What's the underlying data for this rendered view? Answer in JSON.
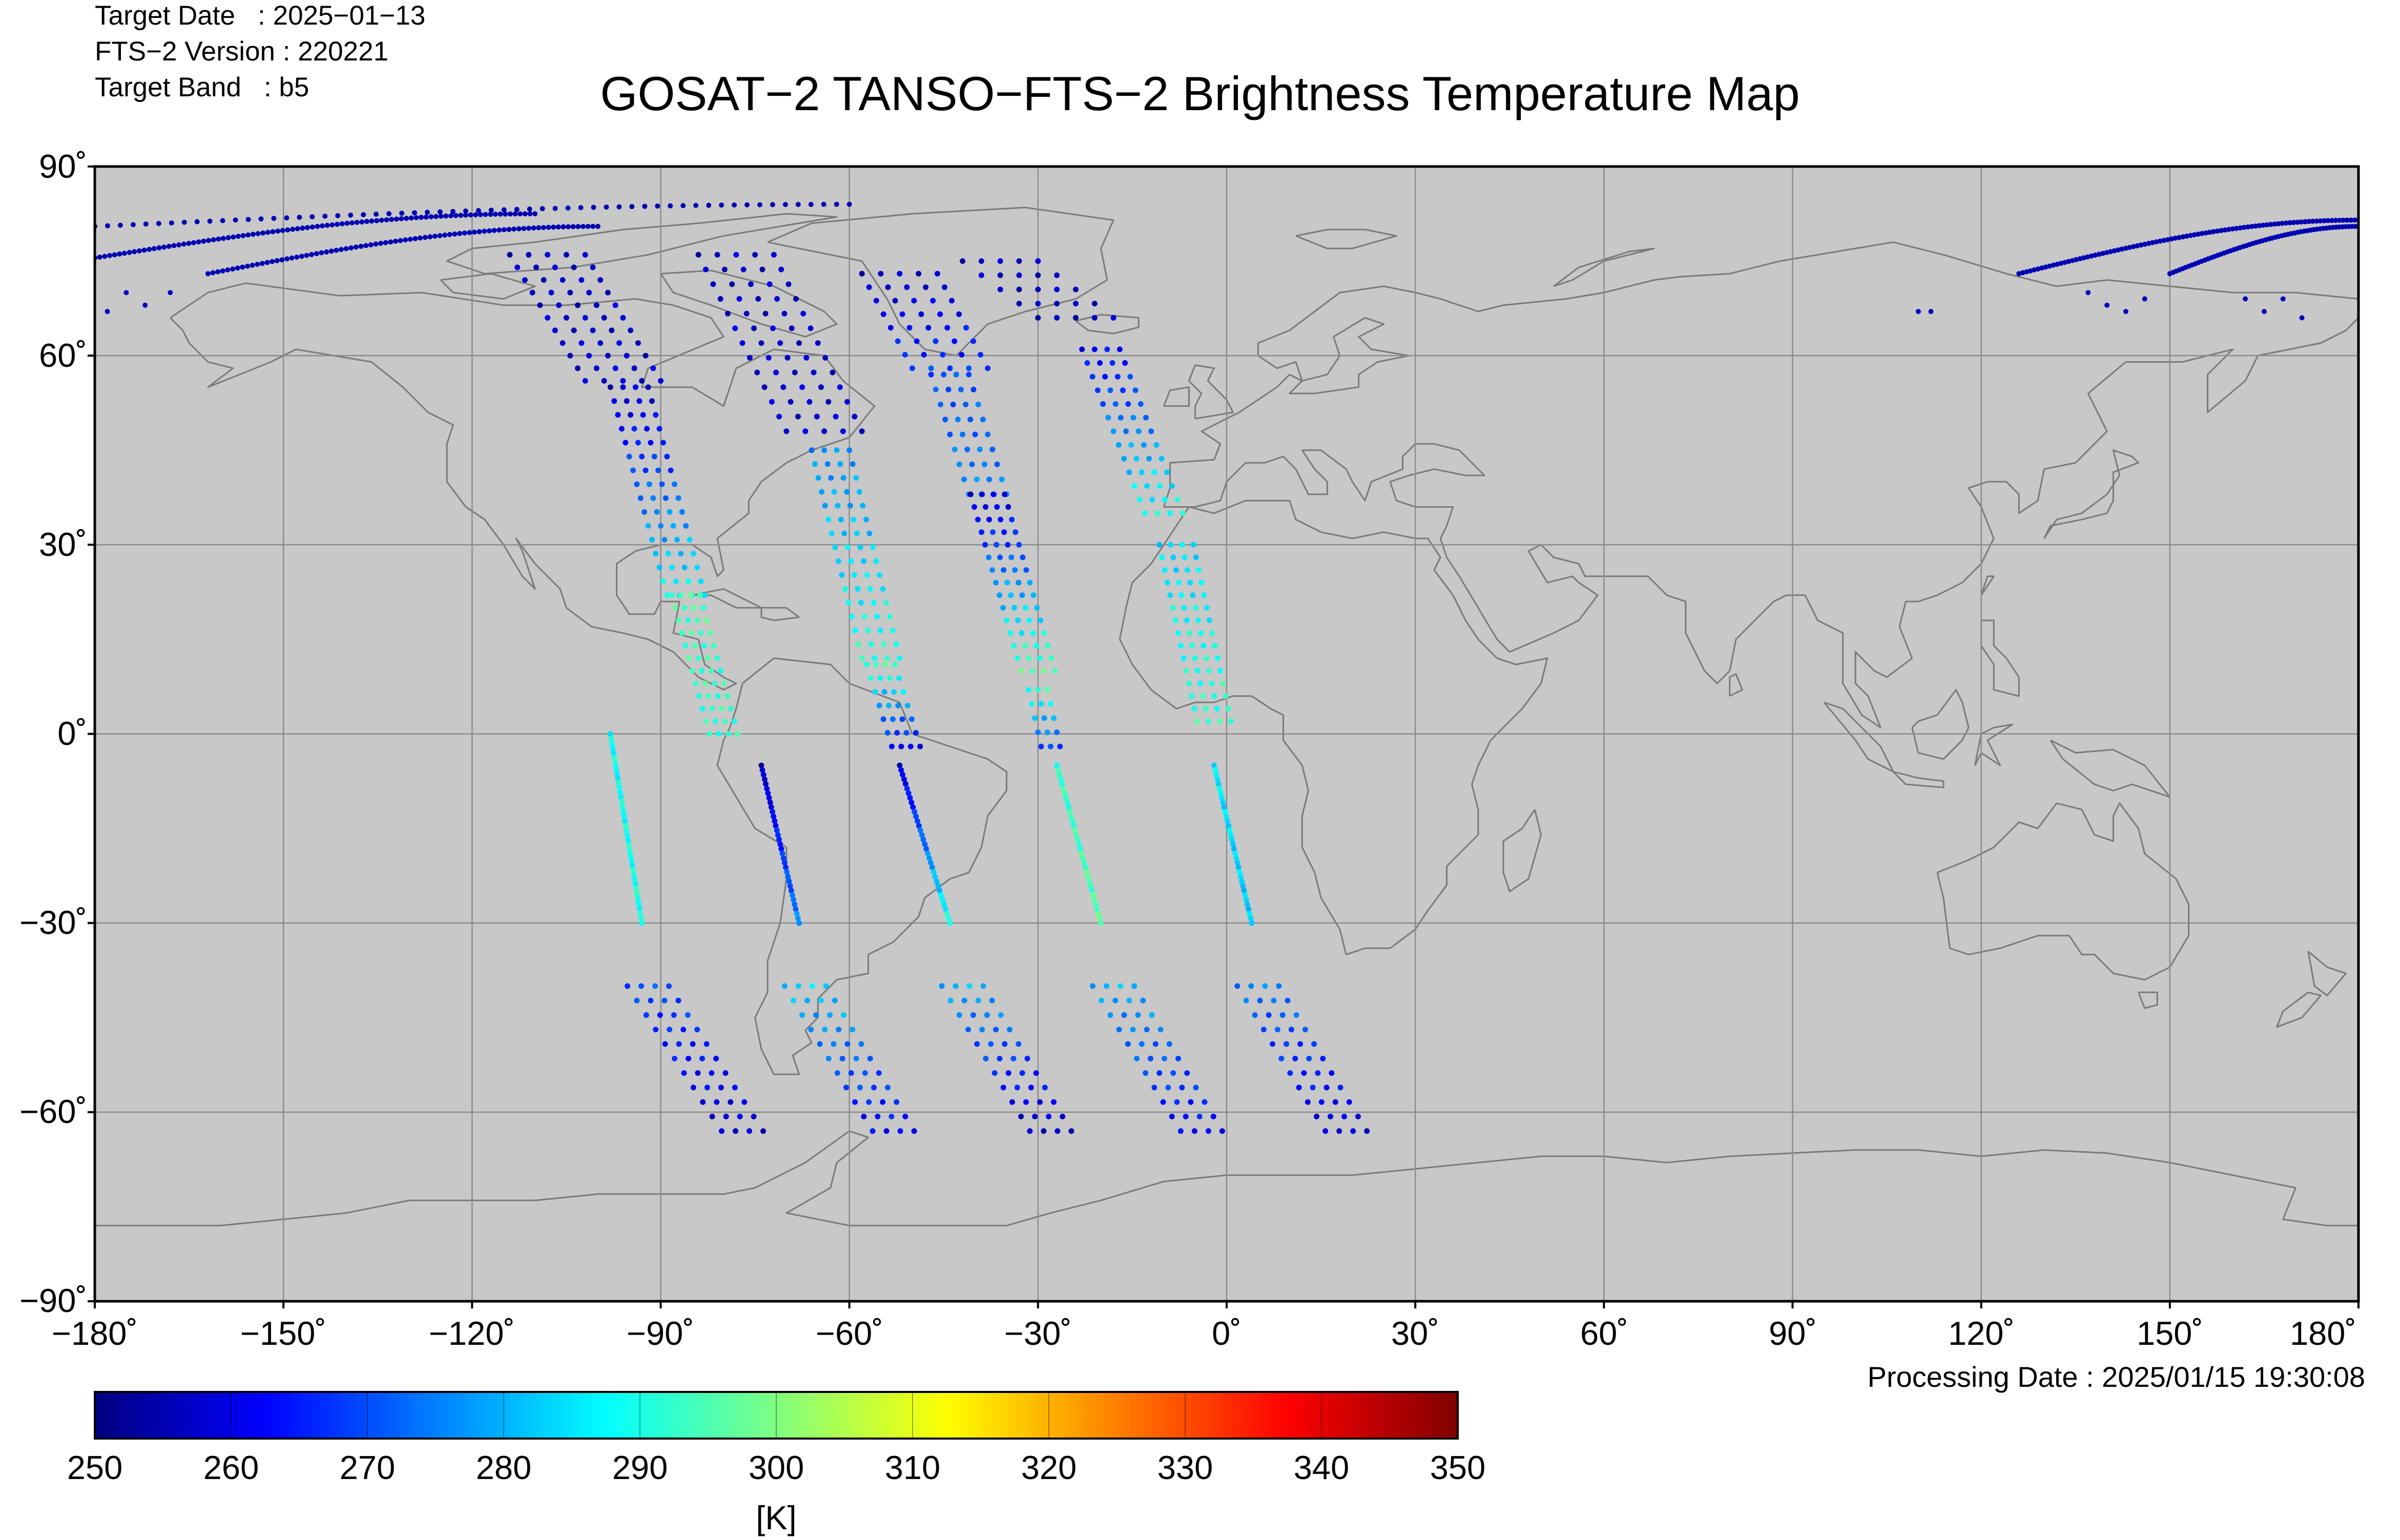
{
  "header": {
    "target_date": "Target Date   : 2025−01−13",
    "fts_version": "FTS−2 Version : 220221",
    "target_band": "Target Band   : b5",
    "title": "GOSAT−2 TANSO−FTS−2 Brightness Temperature Map"
  },
  "footer": {
    "processing_date": "Processing Date : 2025/01/15 19:30:08"
  },
  "axes": {
    "lon_range": [
      -180,
      180
    ],
    "lat_range": [
      -90,
      90
    ],
    "lon_ticks": [
      "−180˚",
      "−150˚",
      "−120˚",
      "−90˚",
      "−60˚",
      "−30˚",
      "0˚",
      "30˚",
      "60˚",
      "90˚",
      "120˚",
      "150˚",
      "180˚"
    ],
    "lat_ticks": [
      "90˚",
      "60˚",
      "30˚",
      "0˚",
      "−30˚",
      "−60˚",
      "−90˚"
    ],
    "grid": true
  },
  "colorbar": {
    "min": 250,
    "max": 350,
    "tick_labels": [
      "250",
      "260",
      "270",
      "280",
      "290",
      "300",
      "310",
      "320",
      "330",
      "340",
      "350"
    ],
    "unit": "[K]",
    "colormap": "jet"
  },
  "colors": {
    "map_background": "#c8c8c8",
    "coastline": "#7a7a7a",
    "grid": "#8c8c8c",
    "frame": "#000000"
  },
  "observations": {
    "swaths": [
      {
        "segments": [
          {
            "lat0": 76,
            "lat1": 56,
            "lon0": -108,
            "lon1": -96,
            "bt0": 256,
            "bt1": 258,
            "rows": 11,
            "cols": 5,
            "spacing": 3
          },
          {
            "lat0": 55,
            "lat1": 22,
            "lon0": -95,
            "lon1": -86,
            "bt0": 257,
            "bt1": 288,
            "rows": 16,
            "cols": 4,
            "spacing": 2
          },
          {
            "lat0": 22,
            "lat1": 0,
            "lon0": -86,
            "lon1": -80,
            "bt0": 295,
            "bt1": 292,
            "rows": 12,
            "cols": 4,
            "spacing": 1.5
          },
          {
            "lat0": -5,
            "lat1": -30,
            "lon0": -74,
            "lon1": -68,
            "bt0": 256,
            "bt1": 276,
            "rows": 35,
            "cols": 1,
            "spacing": 0
          },
          {
            "lat0": -40,
            "lat1": -63,
            "lon0": -92,
            "lon1": -77,
            "bt0": 270,
            "bt1": 257,
            "rows": 11,
            "cols": 4,
            "spacing": 2.2
          }
        ]
      },
      {
        "segments": [
          {
            "lat0": 76,
            "lat1": 48,
            "lon0": -78,
            "lon1": -64,
            "bt0": 256,
            "bt1": 258,
            "rows": 13,
            "cols": 5,
            "spacing": 3
          },
          {
            "lat0": 45,
            "lat1": 12,
            "lon0": -63,
            "lon1": -55,
            "bt0": 276,
            "bt1": 292,
            "rows": 16,
            "cols": 4,
            "spacing": 2
          },
          {
            "lat0": 11,
            "lat1": -2,
            "lon0": -55,
            "lon1": -51,
            "bt0": 294,
            "bt1": 262,
            "rows": 7,
            "cols": 4,
            "spacing": 1.5
          },
          {
            "lat0": -5,
            "lat1": -30,
            "lon0": -52,
            "lon1": -44,
            "bt0": 258,
            "bt1": 290,
            "rows": 35,
            "cols": 1,
            "spacing": 0
          },
          {
            "lat0": -40,
            "lat1": -63,
            "lon0": -67,
            "lon1": -53,
            "bt0": 283,
            "bt1": 262,
            "rows": 11,
            "cols": 4,
            "spacing": 2.2
          }
        ]
      },
      {
        "segments": [
          {
            "lat0": 73,
            "lat1": 58,
            "lon0": -52,
            "lon1": -44,
            "bt0": 256,
            "bt1": 268,
            "rows": 8,
            "cols": 5,
            "spacing": 3
          },
          {
            "lat0": 57,
            "lat1": 38,
            "lon0": -44,
            "lon1": -38,
            "bt0": 270,
            "bt1": 276,
            "rows": 9,
            "cols": 4,
            "spacing": 2
          },
          {
            "lat0": 38,
            "lat1": 10,
            "lon0": -38,
            "lon1": -30,
            "bt0": 258,
            "bt1": 296,
            "rows": 15,
            "cols": 4,
            "spacing": 1.8
          },
          {
            "lat0": 7,
            "lat1": -2,
            "lon0": -30,
            "lon1": -28,
            "bt0": 292,
            "bt1": 270,
            "rows": 5,
            "cols": 3,
            "spacing": 1.5
          },
          {
            "lat0": -5,
            "lat1": -30,
            "lon0": -27,
            "lon1": -20,
            "bt0": 292,
            "bt1": 296,
            "rows": 35,
            "cols": 1,
            "spacing": 0
          },
          {
            "lat0": -40,
            "lat1": -63,
            "lon0": -42,
            "lon1": -28,
            "bt0": 280,
            "bt1": 256,
            "rows": 11,
            "cols": 4,
            "spacing": 2.2
          }
        ]
      },
      {
        "segments": [
          {
            "lat0": 75,
            "lat1": 66,
            "lon0": -36,
            "lon1": -24,
            "bt0": 256,
            "bt1": 256,
            "rows": 5,
            "cols": 5,
            "spacing": 3
          },
          {
            "lat0": 61,
            "lat1": 35,
            "lon0": -20,
            "lon1": -10,
            "bt0": 262,
            "bt1": 290,
            "rows": 13,
            "cols": 4,
            "spacing": 2
          },
          {
            "lat0": 30,
            "lat1": 2,
            "lon0": -8,
            "lon1": -2,
            "bt0": 284,
            "bt1": 293,
            "rows": 15,
            "cols": 4,
            "spacing": 1.8
          },
          {
            "lat0": -5,
            "lat1": -30,
            "lon0": -2,
            "lon1": 4,
            "bt0": 286,
            "bt1": 282,
            "rows": 35,
            "cols": 1,
            "spacing": 0
          },
          {
            "lat0": -40,
            "lat1": -63,
            "lon0": -18,
            "lon1": -4,
            "bt0": 280,
            "bt1": 262,
            "rows": 11,
            "cols": 4,
            "spacing": 2.2
          }
        ]
      },
      {
        "segments": [
          {
            "lat0": 0,
            "lat1": -30,
            "lon0": -98,
            "lon1": -93,
            "bt0": 288,
            "bt1": 290,
            "rows": 40,
            "cols": 1,
            "spacing": 0
          },
          {
            "lat0": -40,
            "lat1": -63,
            "lon0": 5,
            "lon1": 19,
            "bt0": 275,
            "bt1": 258,
            "rows": 11,
            "cols": 4,
            "spacing": 2.2
          }
        ]
      }
    ],
    "polar_arcs": [
      {
        "lat0": 80.5,
        "lat1": 84,
        "lon0": -180,
        "lon1": -60,
        "bt": 255,
        "n": 60
      },
      {
        "lat0": 75.5,
        "lat1": 82.5,
        "lon0": -180,
        "lon1": -110,
        "bt": 255,
        "n": 90
      },
      {
        "lat0": 73,
        "lat1": 80.5,
        "lon0": -162,
        "lon1": -100,
        "bt": 255,
        "n": 80
      },
      {
        "lat0": 73,
        "lat1": 81.5,
        "lon0": 126,
        "lon1": 180,
        "bt": 255,
        "n": 90
      },
      {
        "lat0": 73,
        "lat1": 80.5,
        "lon0": 150,
        "lon1": 180,
        "bt": 255,
        "n": 60
      }
    ]
  }
}
